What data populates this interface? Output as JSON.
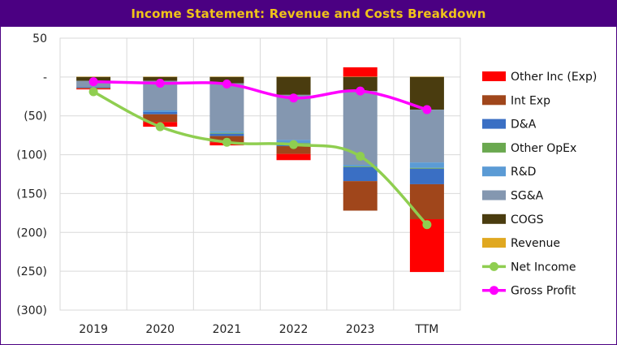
{
  "title": "Income Statement: Revenue and Costs Breakdown",
  "colors": {
    "frame": "#4b0082",
    "title_text": "#f0c419",
    "grid": "#d9d9d9"
  },
  "chart_data": {
    "type": "bar",
    "stacked": true,
    "title": "Income Statement: Revenue and Costs Breakdown",
    "xlabel": "",
    "ylabel": "",
    "ylim": [
      -300,
      50
    ],
    "y_ticks": [
      50,
      0,
      -50,
      -100,
      -150,
      -200,
      -250,
      -300
    ],
    "y_tick_labels": [
      "50",
      "-",
      "(50)",
      "(100)",
      "(150)",
      "(200)",
      "(250)",
      "(300)"
    ],
    "grid": true,
    "legend_position": "right",
    "categories": [
      "2019",
      "2020",
      "2021",
      "2022",
      "2023",
      "TTM"
    ],
    "series": [
      {
        "name": "Other Inc (Exp)",
        "kind": "bar",
        "color": "#ff0000",
        "values": [
          -1,
          -6,
          -4,
          -8,
          12,
          -68
        ]
      },
      {
        "name": "Int Exp",
        "kind": "bar",
        "color": "#a0461b",
        "values": [
          -1,
          -10,
          -8,
          -10,
          -38,
          -45
        ]
      },
      {
        "name": "D&A",
        "kind": "bar",
        "color": "#3a6fc4",
        "values": [
          -1,
          -3,
          -3,
          -3,
          -18,
          -20
        ]
      },
      {
        "name": "Other OpEx",
        "kind": "bar",
        "color": "#6aa84f",
        "values": [
          0,
          0,
          -1,
          -1,
          -1,
          -1
        ]
      },
      {
        "name": "R&D",
        "kind": "bar",
        "color": "#5b9bd5",
        "values": [
          0,
          -2,
          -2,
          -4,
          -2,
          -7
        ]
      },
      {
        "name": "SG&A",
        "kind": "bar",
        "color": "#8497b0",
        "values": [
          -8,
          -38,
          -62,
          -58,
          -95,
          -68
        ]
      },
      {
        "name": "COGS",
        "kind": "bar",
        "color": "#4a3c0f",
        "values": [
          -5,
          -5,
          -8,
          -23,
          -18,
          -42
        ]
      },
      {
        "name": "Revenue",
        "kind": "bar",
        "color": "#e0a820",
        "values": [
          0.5,
          0.5,
          0.5,
          0.5,
          0.5,
          0.5
        ]
      },
      {
        "name": "Net Income",
        "kind": "line",
        "color": "#8fce50",
        "values": [
          -19,
          -64,
          -84,
          -87,
          -102,
          -190
        ]
      },
      {
        "name": "Gross Profit",
        "kind": "line",
        "color": "#ff00ff",
        "values": [
          -6,
          -8,
          -9,
          -27,
          -18,
          -42
        ]
      }
    ]
  }
}
